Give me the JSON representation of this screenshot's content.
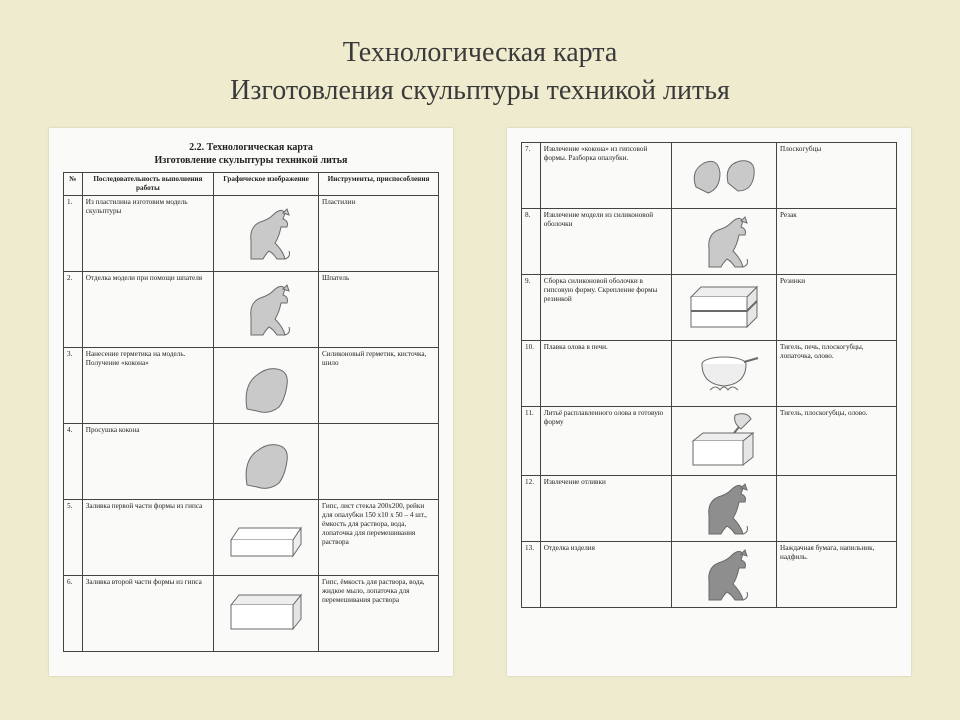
{
  "title_line1": "Технологическая карта",
  "title_line2": "Изготовления скульптуры техникой литья",
  "page1": {
    "heading": "2.2. Технологическая карта",
    "subheading": "Изготовление скульптуры техникой литья",
    "columns": {
      "num": "№",
      "seq": "Последовательность выполнения работы",
      "graphic": "Графическое изображение",
      "tools": "Инструменты, приспособления"
    },
    "rows": [
      {
        "n": "1.",
        "seq": "Из пластилина изготовим модель скульптуры",
        "tools": "Пластилин",
        "icon": "dog-sit"
      },
      {
        "n": "2.",
        "seq": "Отделка модели при помощи шпателя",
        "tools": "Шпатель",
        "icon": "dog-sit"
      },
      {
        "n": "3.",
        "seq": "Нанесение герметика на модель. Получение «кокона»",
        "tools": "Силиконовый герметик, кисточка, шило",
        "icon": "dog-blob"
      },
      {
        "n": "4.",
        "seq": "Просушка кокона",
        "tools": "",
        "icon": "dog-blob"
      },
      {
        "n": "5.",
        "seq": "Заливка первой части формы из гипса",
        "tools": "Гипс, лист стекла 200х200, рейки для опалубки 150 х10 х 50 – 4 шт., ёмкость для раствора, вода, лопаточка для перемешивания раствора",
        "icon": "tray-open"
      },
      {
        "n": "6.",
        "seq": "Заливка второй части формы из гипса",
        "tools": "Гипс, ёмкость для раствора, вода, жидкое мыло, лопаточка для перемешивания раствора",
        "icon": "tray-closed"
      }
    ]
  },
  "page2": {
    "rows": [
      {
        "n": "7.",
        "seq": "Извлечение «кокона» из гипсовой формы. Разборка опалубки.",
        "tools": "Плоскогубцы",
        "icon": "halves"
      },
      {
        "n": "8.",
        "seq": "Извлечение модели из силиконовой оболочки",
        "tools": "Резак",
        "icon": "dog-sit"
      },
      {
        "n": "9.",
        "seq": "Сборка силиконовой оболочки в гипсовую форму. Скрепление формы резинкой",
        "tools": "Резинки",
        "icon": "box-band"
      },
      {
        "n": "10.",
        "seq": "Плавка олова в печи.",
        "tools": "Тигель, печь, плоскогубцы, лопаточка, олово.",
        "icon": "crucible"
      },
      {
        "n": "11.",
        "seq": "Литьё расплавленного олова в готовую форму",
        "tools": "Тигель, плоскогубцы, олово.",
        "icon": "pour-box"
      },
      {
        "n": "12.",
        "seq": "Извлечение отливки",
        "tools": "",
        "icon": "dog-sit-dark"
      },
      {
        "n": "13.",
        "seq": "Отделка изделия",
        "tools": "Наждачная бумага, напильник, надфиль.",
        "icon": "dog-sit-dark"
      }
    ]
  },
  "style": {
    "bg": "#eeebce",
    "paper": "#fafaf8",
    "title_color": "#3a3a3a",
    "title_fontsize": 28,
    "doc_fontsize": 7.2,
    "sketch_fill": "#c9c9c9",
    "sketch_stroke": "#6a6a6a"
  }
}
